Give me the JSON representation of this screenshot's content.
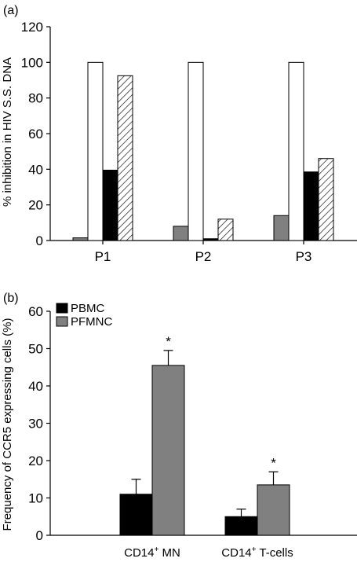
{
  "chart_data": [
    {
      "panel_label": "(a)",
      "type": "bar",
      "ylabel": "% inhibition in HIV S.S. DNA",
      "xlabel": "",
      "ylim": [
        0,
        120
      ],
      "yticks": [
        "0",
        "20",
        "40",
        "60",
        "80",
        "100",
        "120"
      ],
      "categories": [
        "P1",
        "P2",
        "P3"
      ],
      "series": [
        {
          "values": [
            1.5,
            8,
            14
          ],
          "fill": "gray"
        },
        {
          "values": [
            100,
            100,
            100
          ],
          "fill": "white"
        },
        {
          "values": [
            39.5,
            1,
            38.5
          ],
          "fill": "black"
        },
        {
          "values": [
            92.5,
            12,
            46
          ],
          "fill": "hatched"
        }
      ],
      "legend": "none",
      "grid": false
    },
    {
      "panel_label": "(b)",
      "type": "bar",
      "ylabel": "Frequency of CCR5 expressing cells (%)",
      "xlabel": "",
      "ylim": [
        0,
        60
      ],
      "yticks": [
        "0",
        "10",
        "20",
        "30",
        "40",
        "50",
        "60"
      ],
      "categories": [
        {
          "main": "CD14",
          "sup": "+",
          "rest": " MN"
        },
        {
          "main": "CD14",
          "sup": "+",
          "rest": " T-cells"
        }
      ],
      "series": [
        {
          "name": "PBMC",
          "values": [
            11,
            5
          ],
          "errors": [
            4,
            2
          ],
          "color": "#000000"
        },
        {
          "name": "PFMNC",
          "values": [
            45.5,
            13.5
          ],
          "errors": [
            4,
            3.5
          ],
          "color": "#808080"
        }
      ],
      "annotations": [
        {
          "category": 0,
          "series": 1,
          "text": "*"
        },
        {
          "category": 1,
          "series": 1,
          "text": "*"
        }
      ],
      "legend": "top-left",
      "grid": false
    }
  ],
  "colors": {
    "black": "#000000",
    "gray": "#808080",
    "white": "#ffffff"
  }
}
